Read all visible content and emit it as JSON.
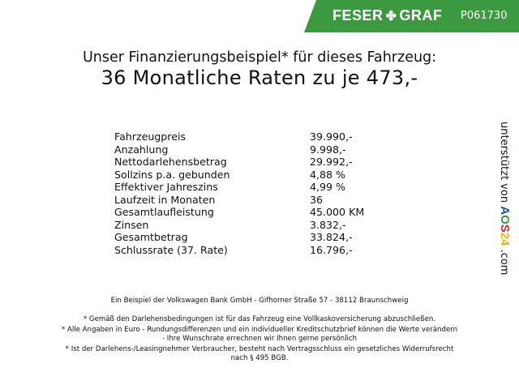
{
  "header": {
    "brand": "FESER",
    "brand2": "GRAF",
    "brand_icon": "clover-icon",
    "code": "P061730",
    "banner_color": "#3b9a3f"
  },
  "title": {
    "line1": "Unser Finanzierungsbeispiel* für dieses Fahrzeug:",
    "line2": "36 Monatliche Raten zu je 473,-"
  },
  "rows": [
    {
      "label": "Fahrzeugpreis",
      "value": "39.990,-"
    },
    {
      "label": "Anzahlung",
      "value": "9.998,-"
    },
    {
      "label": "Nettodarlehensbetrag",
      "value": "29.992,-"
    },
    {
      "label": "Sollzins p.a. gebunden",
      "value": "4,88 %"
    },
    {
      "label": "Effektiver Jahreszins",
      "value": "4,99 %"
    },
    {
      "label": "Laufzeit in Monaten",
      "value": "36"
    },
    {
      "label": "Gesamtlaufleistung",
      "value": "45.000 KM"
    },
    {
      "label": "Zinsen",
      "value": "3.832,-"
    },
    {
      "label": "Gesamtbetrag",
      "value": "33.824,-"
    },
    {
      "label": "Schlussrate (37. Rate)",
      "value": "16.796,-"
    }
  ],
  "side": {
    "prefix": "unterstützt von",
    "a": "A",
    "o": "O",
    "s": "S",
    "n24": "24",
    "suffix": ".com"
  },
  "footer": {
    "bank": "Ein Beispiel der Volkswagen Bank GmbH - Gifhorner Straße 57 - 38112 Braunschweig",
    "note1": "* Gemäß den Darlehensbedingungen ist für das Fahrzeug eine Vollkaskoversicherung abzuschließen.",
    "note2a": "* Alle Angaben in Euro - Rundungsdifferenzen und ein individueller Kreditschutzbrief können die Werte verändern",
    "note2b": "- Ihre Wunschrate errechnen wir Ihnen gerne persönlich",
    "note3a": "* Ist der Darlehens-/Leasingnehmer Verbraucher, besteht nach Vertragsschluss ein gesetzliches Widerrufsrecht",
    "note3b": "nach § 495 BGB."
  }
}
